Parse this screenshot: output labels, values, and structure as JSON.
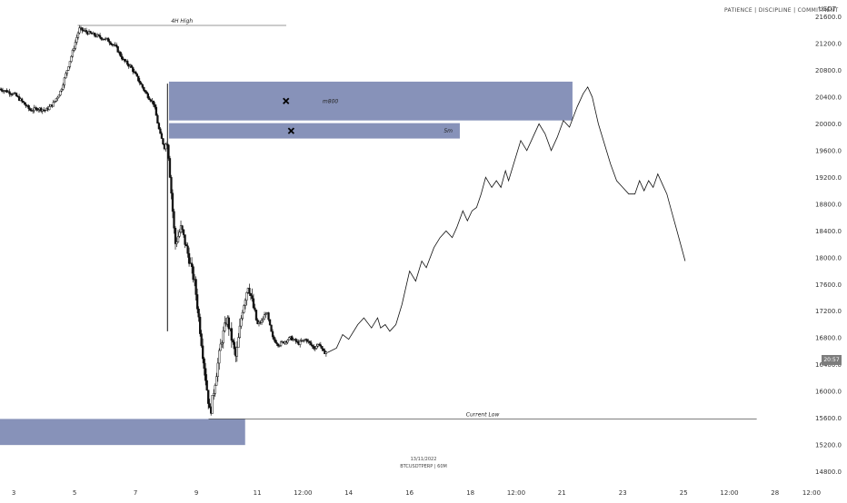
{
  "header": {
    "tagline": "PATIENCE  |  DISCIPLINE  |  COMMITMENT",
    "currency": "USDT"
  },
  "footer": {
    "date": "13/11/2022",
    "symbol": "BTCUSDTPERP  |  60M"
  },
  "current_price_tag": "20:57",
  "colors": {
    "zone": "#8792b9",
    "candle": "#111111",
    "projection": "#111111"
  },
  "chart_data": {
    "type": "candlestick",
    "title": "",
    "xlabel": "",
    "ylabel": "",
    "ylim": [
      14700,
      21850
    ],
    "xlim": [
      2.55,
      29.35
    ],
    "x_ticks": [
      {
        "x": 3,
        "label": "3"
      },
      {
        "x": 5,
        "label": "5"
      },
      {
        "x": 7,
        "label": "7"
      },
      {
        "x": 9,
        "label": "9"
      },
      {
        "x": 11,
        "label": "11"
      },
      {
        "x": 12.5,
        "label": "12:00"
      },
      {
        "x": 14,
        "label": "14"
      },
      {
        "x": 16,
        "label": "16"
      },
      {
        "x": 18,
        "label": "18"
      },
      {
        "x": 19.5,
        "label": "12:00"
      },
      {
        "x": 21,
        "label": "21"
      },
      {
        "x": 23,
        "label": "23"
      },
      {
        "x": 25,
        "label": "25"
      },
      {
        "x": 26.5,
        "label": "12:00"
      },
      {
        "x": 28,
        "label": "28"
      },
      {
        "x": 29.2,
        "label": "12:00"
      }
    ],
    "y_ticks": [
      "21600.0",
      "21200.0",
      "20800.0",
      "20400.0",
      "20000.0",
      "19600.0",
      "19200.0",
      "18800.0",
      "18400.0",
      "18000.0",
      "17600.0",
      "17200.0",
      "16800.0",
      "16400.0",
      "16000.0",
      "15600.0",
      "15200.0",
      "14800.0"
    ],
    "price_path": [
      [
        2.55,
        20520
      ],
      [
        3.0,
        20450
      ],
      [
        3.3,
        20320
      ],
      [
        3.55,
        20200
      ],
      [
        3.8,
        20230
      ],
      [
        4.05,
        20200
      ],
      [
        4.3,
        20300
      ],
      [
        4.55,
        20500
      ],
      [
        4.75,
        20800
      ],
      [
        4.95,
        21100
      ],
      [
        5.15,
        21420
      ],
      [
        5.45,
        21360
      ],
      [
        5.8,
        21300
      ],
      [
        6.1,
        21250
      ],
      [
        6.35,
        21150
      ],
      [
        6.6,
        20950
      ],
      [
        6.85,
        20850
      ],
      [
        7.1,
        20650
      ],
      [
        7.35,
        20450
      ],
      [
        7.6,
        20300
      ],
      [
        7.8,
        19850
      ],
      [
        7.95,
        19650
      ],
      [
        8.05,
        19750
      ],
      [
        8.3,
        18200
      ],
      [
        8.5,
        18450
      ],
      [
        8.75,
        18000
      ],
      [
        8.95,
        17600
      ],
      [
        9.1,
        17000
      ],
      [
        9.2,
        16600
      ],
      [
        9.3,
        16200
      ],
      [
        9.45,
        15650
      ],
      [
        9.6,
        16100
      ],
      [
        9.8,
        16700
      ],
      [
        10.0,
        17100
      ],
      [
        10.15,
        16800
      ],
      [
        10.3,
        16500
      ],
      [
        10.5,
        17200
      ],
      [
        10.7,
        17600
      ],
      [
        10.85,
        17300
      ],
      [
        11.0,
        17000
      ],
      [
        11.15,
        17050
      ],
      [
        11.3,
        17200
      ],
      [
        11.5,
        16800
      ],
      [
        11.7,
        16700
      ],
      [
        11.9,
        16750
      ],
      [
        12.1,
        16800
      ],
      [
        12.35,
        16720
      ],
      [
        12.6,
        16780
      ],
      [
        12.85,
        16650
      ],
      [
        13.05,
        16720
      ],
      [
        13.15,
        16580
      ],
      [
        13.3,
        16600
      ]
    ],
    "projection": [
      [
        13.3,
        16580
      ],
      [
        13.6,
        16650
      ],
      [
        13.8,
        16850
      ],
      [
        14.0,
        16780
      ],
      [
        14.3,
        17000
      ],
      [
        14.5,
        17100
      ],
      [
        14.75,
        16950
      ],
      [
        14.95,
        17100
      ],
      [
        15.05,
        16950
      ],
      [
        15.2,
        17000
      ],
      [
        15.35,
        16900
      ],
      [
        15.55,
        17000
      ],
      [
        15.75,
        17300
      ],
      [
        16.0,
        17800
      ],
      [
        16.2,
        17650
      ],
      [
        16.4,
        17950
      ],
      [
        16.55,
        17850
      ],
      [
        16.8,
        18150
      ],
      [
        17.0,
        18300
      ],
      [
        17.2,
        18400
      ],
      [
        17.4,
        18300
      ],
      [
        17.55,
        18450
      ],
      [
        17.75,
        18700
      ],
      [
        17.9,
        18550
      ],
      [
        18.05,
        18700
      ],
      [
        18.2,
        18750
      ],
      [
        18.35,
        18950
      ],
      [
        18.5,
        19200
      ],
      [
        18.7,
        19050
      ],
      [
        18.85,
        19150
      ],
      [
        19.0,
        19050
      ],
      [
        19.15,
        19300
      ],
      [
        19.25,
        19150
      ],
      [
        19.45,
        19450
      ],
      [
        19.65,
        19750
      ],
      [
        19.85,
        19600
      ],
      [
        20.05,
        19800
      ],
      [
        20.25,
        20000
      ],
      [
        20.45,
        19850
      ],
      [
        20.65,
        19600
      ],
      [
        20.85,
        19800
      ],
      [
        21.05,
        20050
      ],
      [
        21.25,
        19950
      ],
      [
        21.5,
        20250
      ],
      [
        21.7,
        20450
      ],
      [
        21.85,
        20550
      ],
      [
        22.0,
        20400
      ],
      [
        22.2,
        20000
      ],
      [
        22.4,
        19700
      ],
      [
        22.6,
        19400
      ],
      [
        22.8,
        19150
      ],
      [
        23.0,
        19050
      ],
      [
        23.2,
        18950
      ],
      [
        23.4,
        18950
      ],
      [
        23.55,
        19150
      ],
      [
        23.7,
        19000
      ],
      [
        23.85,
        19150
      ],
      [
        24.0,
        19050
      ],
      [
        24.15,
        19250
      ],
      [
        24.3,
        19100
      ],
      [
        24.45,
        18950
      ],
      [
        24.6,
        18700
      ],
      [
        24.75,
        18450
      ],
      [
        24.9,
        18200
      ],
      [
        25.05,
        17950
      ]
    ],
    "zones": [
      {
        "x0": 8.1,
        "x1": 21.35,
        "y0": 20050,
        "y1": 20630,
        "label": "m800",
        "cross": true
      },
      {
        "x0": 8.1,
        "x1": 17.65,
        "y0": 19780,
        "y1": 20010,
        "label": "5m",
        "cross": true
      },
      {
        "x0": 2.55,
        "x1": 10.6,
        "y0": 15200,
        "y1": 15590,
        "label": "",
        "cross": false
      }
    ],
    "levels": [
      {
        "x0": 5.1,
        "x1": 11.95,
        "y": 21470,
        "label": "4H High"
      },
      {
        "x0": 9.4,
        "x1": 27.4,
        "y": 15590,
        "label": "Current Low"
      }
    ]
  }
}
